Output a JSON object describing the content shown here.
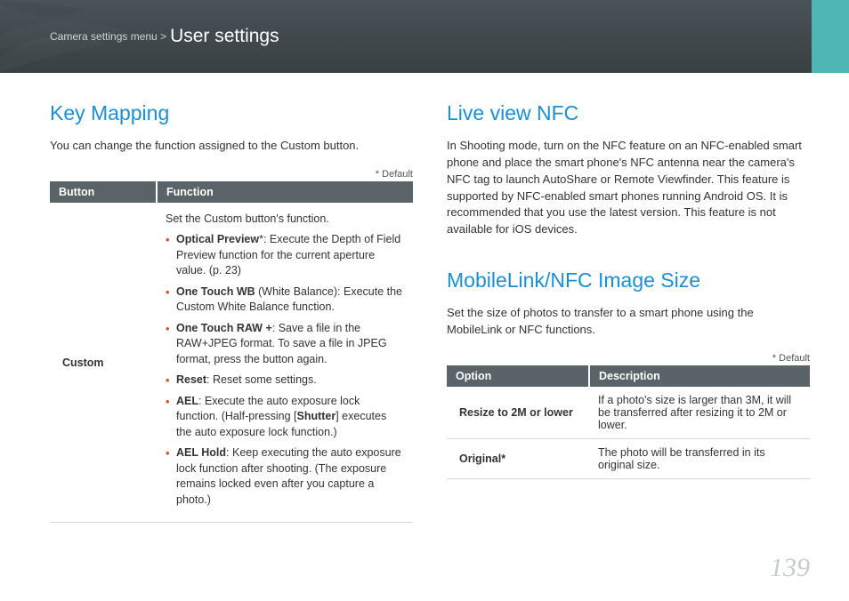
{
  "header": {
    "breadcrumb_prefix": "Camera settings menu >",
    "breadcrumb_title": "User settings",
    "bg_gradient_top": "#4a5358",
    "bg_gradient_bottom": "#384044",
    "accent_color": "#4fb5b5"
  },
  "left": {
    "title": "Key Mapping",
    "intro": "You can change the function assigned to the Custom button.",
    "default_note": "* Default",
    "table": {
      "header_bg": "#5a6367",
      "col1": "Button",
      "col2": "Function",
      "row_label": "Custom",
      "fn_intro": "Set the Custom button's function.",
      "items": [
        {
          "bold": "Optical Preview",
          "suffix": "*: Execute the Depth of Field Preview function for the current aperture value. (p. 23)"
        },
        {
          "bold": "One Touch WB",
          "suffix": " (White Balance): Execute the Custom White Balance function."
        },
        {
          "bold": "One Touch RAW +",
          "suffix": ": Save a file in the RAW+JPEG format. To save a file in JPEG format, press the button again."
        },
        {
          "bold": "Reset",
          "suffix": ": Reset some settings."
        },
        {
          "bold": "AEL",
          "suffix": ": Execute the auto exposure lock function. (Half-pressing [",
          "bold2": "Shutter",
          "suffix2": "] executes the auto exposure lock function.)"
        },
        {
          "bold": "AEL Hold",
          "suffix": ": Keep executing the auto exposure lock function after shooting. (The exposure remains locked even after you capture a photo.)"
        }
      ]
    }
  },
  "right": {
    "s1_title": "Live view NFC",
    "s1_body": "In Shooting mode, turn on the NFC feature on an NFC-enabled smart phone and place the smart phone's NFC antenna near the camera's NFC tag to launch AutoShare or Remote Viewfinder. This feature is supported by NFC-enabled smart phones running Android OS. It is recommended that you use the latest version. This feature is not available for iOS devices.",
    "s2_title": "MobileLink/NFC Image Size",
    "s2_body": "Set the size of photos to transfer to a smart phone using the MobileLink or NFC functions.",
    "default_note": "* Default",
    "table": {
      "col1": "Option",
      "col2": "Description",
      "rows": [
        {
          "opt": "Resize to 2M or lower",
          "desc": "If a photo's size is larger than 3M, it will be transferred after resizing it to 2M or lower."
        },
        {
          "opt": "Original*",
          "desc": "The photo will be transferred in its original size."
        }
      ]
    }
  },
  "page_number": "139",
  "colors": {
    "heading": "#1a8fd4",
    "body_text": "#333333",
    "bullet": "#d14a2a",
    "page_num": "#c8cccd",
    "border": "#d8d8d8"
  },
  "typography": {
    "heading_size_pt": 17,
    "body_size_pt": 10,
    "table_size_pt": 9.5
  }
}
